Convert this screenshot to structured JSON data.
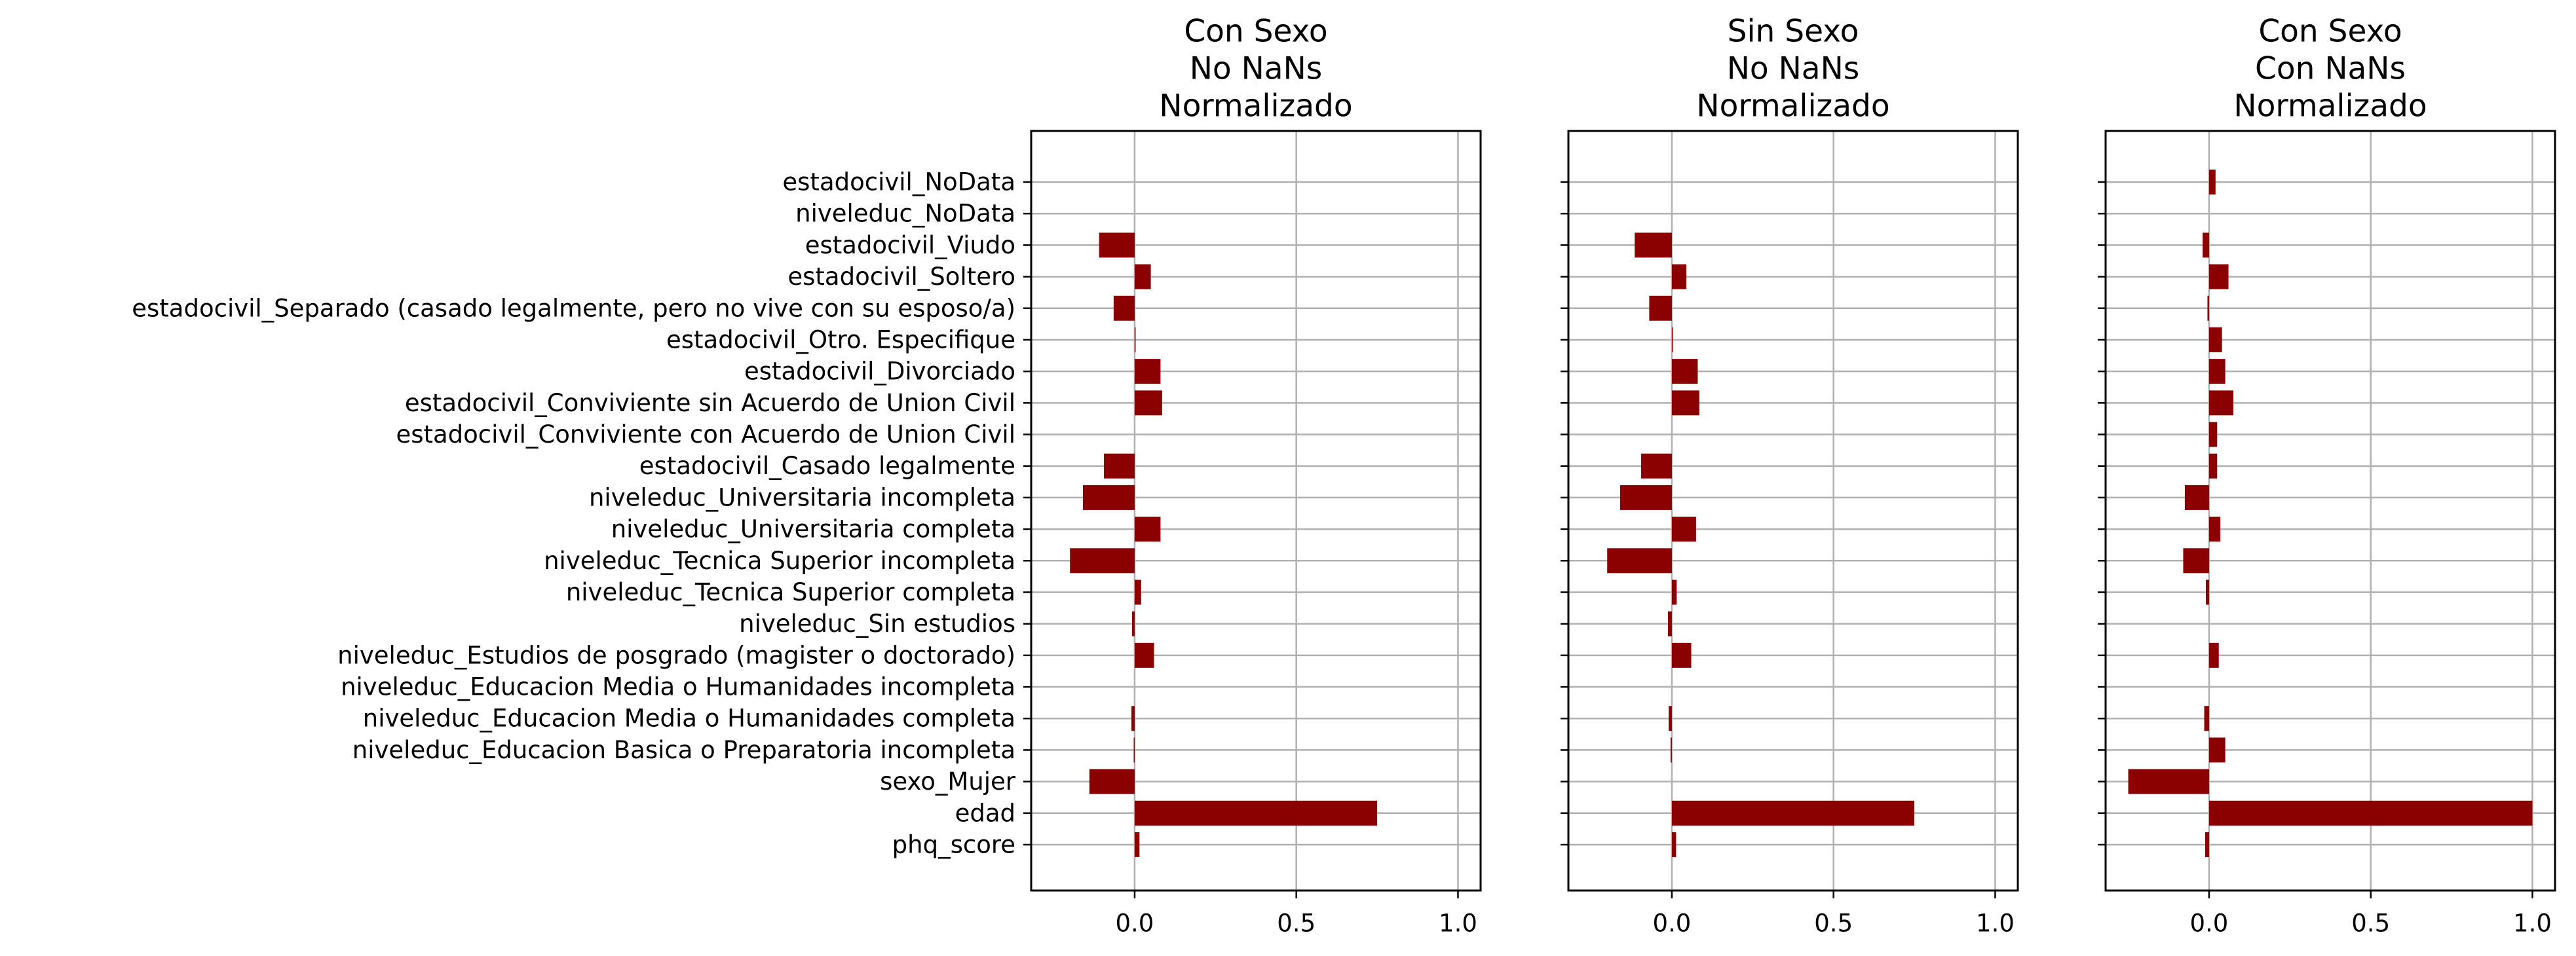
{
  "chart_data": {
    "type": "bar",
    "orientation": "horizontal",
    "bar_color": "#8b0000",
    "grid": true,
    "categories": [
      "phq_score",
      "edad",
      "sexo_Mujer",
      "niveleduc_Educacion Basica o Preparatoria incompleta",
      "niveleduc_Educacion Media o Humanidades completa",
      "niveleduc_Educacion Media o Humanidades incompleta",
      "niveleduc_Estudios de posgrado (magister o doctorado)",
      "niveleduc_Sin estudios",
      "niveleduc_Tecnica Superior completa",
      "niveleduc_Tecnica Superior incompleta",
      "niveleduc_Universitaria completa",
      "niveleduc_Universitaria incompleta",
      "estadocivil_Casado legalmente",
      "estadocivil_Conviviente con Acuerdo de Union Civil",
      "estadocivil_Conviviente sin Acuerdo de Union Civil",
      "estadocivil_Divorciado",
      "estadocivil_Otro. Especifique",
      "estadocivil_Separado (casado legalmente, pero no vive con su esposo/a)",
      "estadocivil_Soltero",
      "estadocivil_Viudo",
      "niveleduc_NoData",
      "estadocivil_NoData"
    ],
    "panels": [
      {
        "title": [
          "Con Sexo",
          "No NaNs",
          "Normalizado"
        ],
        "xlim": [
          -0.32,
          1.07
        ],
        "xticks": [
          0.0,
          0.5,
          1.0
        ],
        "xtick_labels": [
          "0.0",
          "0.5",
          "1.0"
        ],
        "values": [
          0.015,
          0.75,
          -0.14,
          -0.003,
          -0.01,
          0.0,
          0.06,
          -0.008,
          0.02,
          -0.2,
          0.08,
          -0.16,
          -0.095,
          0.0,
          0.085,
          0.08,
          0.003,
          -0.065,
          0.05,
          -0.11,
          0.0,
          0.0
        ]
      },
      {
        "title": [
          "Sin Sexo",
          "No NaNs",
          "Normalizado"
        ],
        "xlim": [
          -0.32,
          1.07
        ],
        "xticks": [
          0.0,
          0.5,
          1.0
        ],
        "xtick_labels": [
          "0.0",
          "0.5",
          "1.0"
        ],
        "values": [
          0.013,
          0.75,
          0.0,
          -0.004,
          -0.01,
          0.0,
          0.06,
          -0.012,
          0.015,
          -0.2,
          0.075,
          -0.16,
          -0.095,
          0.0,
          0.085,
          0.08,
          0.003,
          -0.07,
          0.045,
          -0.115,
          0.0,
          0.0
        ]
      },
      {
        "title": [
          "Con Sexo",
          "Con NaNs",
          "Normalizado"
        ],
        "xlim": [
          -0.32,
          1.07
        ],
        "xticks": [
          0.0,
          0.5,
          1.0
        ],
        "xtick_labels": [
          "0.0",
          "0.5",
          "1.0"
        ],
        "values": [
          -0.012,
          1.0,
          -0.25,
          0.05,
          -0.015,
          0.0,
          0.03,
          0.0,
          -0.01,
          -0.08,
          0.035,
          -0.075,
          0.025,
          0.025,
          0.075,
          0.05,
          0.04,
          -0.005,
          0.06,
          -0.02,
          0.0,
          0.02
        ]
      }
    ]
  }
}
